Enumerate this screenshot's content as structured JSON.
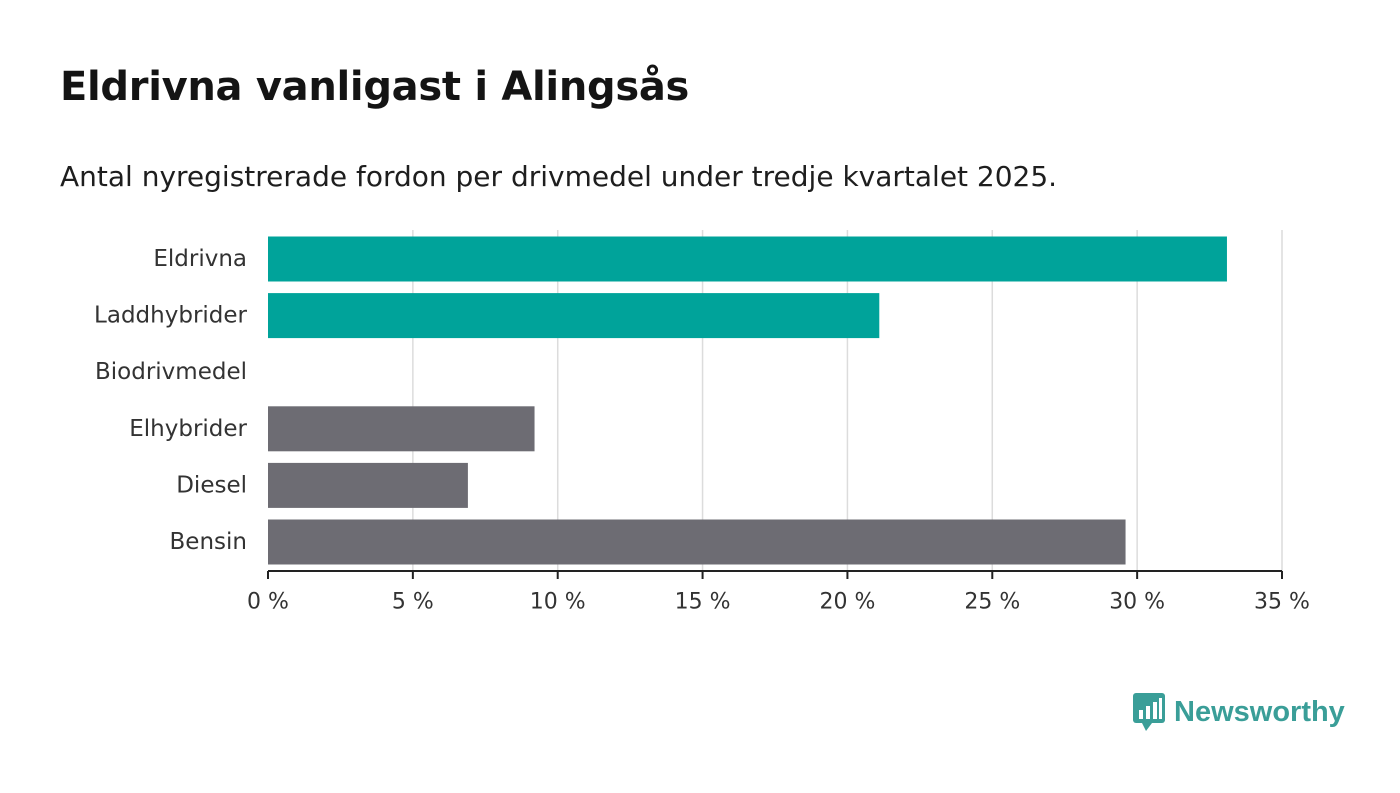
{
  "colors": {
    "highlight": "#00a39a",
    "default": "#6d6c73",
    "grid": "#dcdcdc",
    "axis": "#222222",
    "logo": "#3a9e98"
  },
  "brand": {
    "name": "Newsworthy",
    "icon": "bar-chart-speech-bubble-icon"
  },
  "chart_data": {
    "type": "bar",
    "orientation": "horizontal",
    "title": "Eldrivna vanligast i Alingsås",
    "subtitle": "Antal nyregistrerade fordon per drivmedel under tredje kvartalet 2025.",
    "categories": [
      "Eldrivna",
      "Laddhybrider",
      "Biodrivmedel",
      "Elhybrider",
      "Diesel",
      "Bensin"
    ],
    "values": [
      33.1,
      21.1,
      0,
      9.2,
      6.9,
      29.6
    ],
    "highlight": [
      true,
      true,
      true,
      false,
      false,
      false
    ],
    "xlim": [
      0,
      35
    ],
    "xticks": [
      0,
      5,
      10,
      15,
      20,
      25,
      30,
      35
    ],
    "xtick_labels": [
      "0 %",
      "5 %",
      "10 %",
      "15 %",
      "20 %",
      "25 %",
      "30 %",
      "35 %"
    ],
    "grid": true,
    "xlabel": "",
    "ylabel": ""
  }
}
